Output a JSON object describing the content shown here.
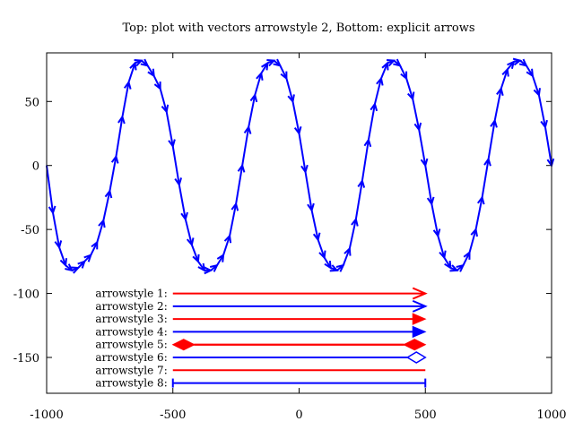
{
  "chart_data": {
    "type": "vector-plot",
    "title": "Top: plot with vectors arrowstyle 2, Bottom: explicit arrows",
    "xlim": [
      -1000,
      1000
    ],
    "ylim": [
      -178,
      88
    ],
    "xticks": [
      -1000,
      -500,
      0,
      500,
      1000
    ],
    "yticks": [
      50,
      0,
      -50,
      -100,
      -150
    ],
    "grid": false,
    "vectors": {
      "color": "#0000ff",
      "samples": [
        {
          "x": -1000,
          "y": 0
        },
        {
          "x": -975,
          "y": -37
        },
        {
          "x": -950,
          "y": -64
        },
        {
          "x": -925,
          "y": -78
        },
        {
          "x": -900,
          "y": -82
        },
        {
          "x": -875,
          "y": -80
        },
        {
          "x": -850,
          "y": -75
        },
        {
          "x": -825,
          "y": -70
        },
        {
          "x": -800,
          "y": -60
        },
        {
          "x": -775,
          "y": -43
        },
        {
          "x": -750,
          "y": -20
        },
        {
          "x": -725,
          "y": 7
        },
        {
          "x": -700,
          "y": 38
        },
        {
          "x": -675,
          "y": 65
        },
        {
          "x": -650,
          "y": 80
        },
        {
          "x": -625,
          "y": 82
        },
        {
          "x": -600,
          "y": 78
        },
        {
          "x": -575,
          "y": 70
        },
        {
          "x": -550,
          "y": 60
        },
        {
          "x": -525,
          "y": 42
        },
        {
          "x": -500,
          "y": 15
        },
        {
          "x": -475,
          "y": -15
        },
        {
          "x": -450,
          "y": -42
        },
        {
          "x": -425,
          "y": -62
        },
        {
          "x": -400,
          "y": -75
        },
        {
          "x": -375,
          "y": -82
        },
        {
          "x": -350,
          "y": -82
        },
        {
          "x": -325,
          "y": -78
        },
        {
          "x": -300,
          "y": -70
        },
        {
          "x": -275,
          "y": -55
        },
        {
          "x": -250,
          "y": -30
        },
        {
          "x": -225,
          "y": 0
        },
        {
          "x": -200,
          "y": 30
        },
        {
          "x": -175,
          "y": 55
        },
        {
          "x": -150,
          "y": 72
        },
        {
          "x": -125,
          "y": 80
        },
        {
          "x": -100,
          "y": 82
        },
        {
          "x": -75,
          "y": 78
        },
        {
          "x": -50,
          "y": 68
        },
        {
          "x": -25,
          "y": 50
        },
        {
          "x": 0,
          "y": 25
        },
        {
          "x": 25,
          "y": -5
        },
        {
          "x": 50,
          "y": -35
        },
        {
          "x": 75,
          "y": -58
        },
        {
          "x": 100,
          "y": -72
        },
        {
          "x": 125,
          "y": -80
        },
        {
          "x": 150,
          "y": -82
        },
        {
          "x": 175,
          "y": -78
        },
        {
          "x": 200,
          "y": -65
        },
        {
          "x": 225,
          "y": -42
        },
        {
          "x": 250,
          "y": -12
        },
        {
          "x": 275,
          "y": 20
        },
        {
          "x": 300,
          "y": 48
        },
        {
          "x": 325,
          "y": 68
        },
        {
          "x": 350,
          "y": 80
        },
        {
          "x": 375,
          "y": 82
        },
        {
          "x": 400,
          "y": 78
        },
        {
          "x": 425,
          "y": 68
        },
        {
          "x": 450,
          "y": 52
        },
        {
          "x": 475,
          "y": 28
        },
        {
          "x": 500,
          "y": 0
        },
        {
          "x": 525,
          "y": -30
        },
        {
          "x": 550,
          "y": -55
        },
        {
          "x": 575,
          "y": -72
        },
        {
          "x": 600,
          "y": -80
        },
        {
          "x": 625,
          "y": -82
        },
        {
          "x": 650,
          "y": -78
        },
        {
          "x": 675,
          "y": -68
        },
        {
          "x": 700,
          "y": -50
        },
        {
          "x": 725,
          "y": -25
        },
        {
          "x": 750,
          "y": 5
        },
        {
          "x": 775,
          "y": 35
        },
        {
          "x": 800,
          "y": 60
        },
        {
          "x": 825,
          "y": 75
        },
        {
          "x": 850,
          "y": 81
        },
        {
          "x": 875,
          "y": 82
        },
        {
          "x": 900,
          "y": 78
        },
        {
          "x": 925,
          "y": 70
        },
        {
          "x": 950,
          "y": 55
        },
        {
          "x": 975,
          "y": 30
        },
        {
          "x": 1000,
          "y": 0
        }
      ]
    },
    "explicit_arrows": [
      {
        "label": "arrowstyle 1:",
        "y": -100,
        "x_from": -500,
        "x_to": 500,
        "color": "#ff0000",
        "head": "open",
        "heads": "end"
      },
      {
        "label": "arrowstyle 2:",
        "y": -110,
        "x_from": -500,
        "x_to": 500,
        "color": "#0000ff",
        "head": "open",
        "heads": "end"
      },
      {
        "label": "arrowstyle 3:",
        "y": -120,
        "x_from": -500,
        "x_to": 500,
        "color": "#ff0000",
        "head": "filled",
        "heads": "end"
      },
      {
        "label": "arrowstyle 4:",
        "y": -130,
        "x_from": -500,
        "x_to": 500,
        "color": "#0000ff",
        "head": "filled",
        "heads": "end"
      },
      {
        "label": "arrowstyle 5:",
        "y": -140,
        "x_from": -500,
        "x_to": 500,
        "color": "#ff0000",
        "head": "diamond",
        "heads": "both"
      },
      {
        "label": "arrowstyle 6:",
        "y": -150,
        "x_from": -500,
        "x_to": 500,
        "color": "#0000ff",
        "head": "hollow",
        "heads": "end"
      },
      {
        "label": "arrowstyle 7:",
        "y": -160,
        "x_from": -500,
        "x_to": 500,
        "color": "#ff0000",
        "head": "none",
        "heads": "none"
      },
      {
        "label": "arrowstyle 8:",
        "y": -170,
        "x_from": -500,
        "x_to": 500,
        "color": "#0000ff",
        "head": "bar",
        "heads": "both"
      }
    ]
  }
}
